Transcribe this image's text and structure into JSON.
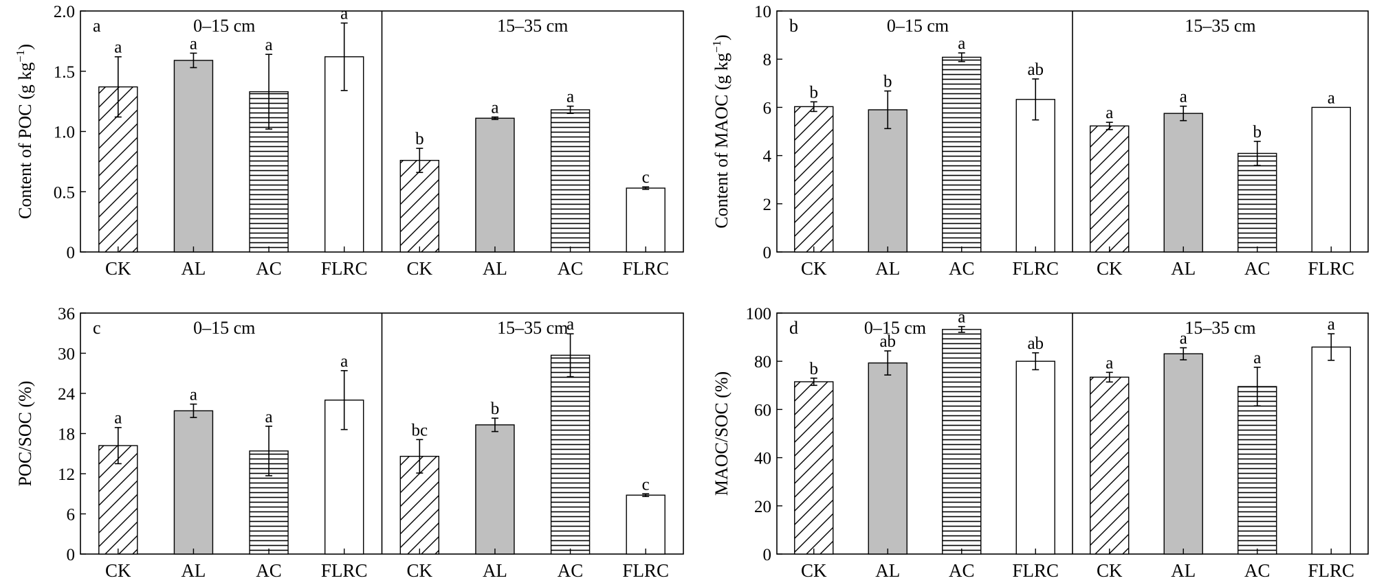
{
  "groups": [
    "0–15 cm",
    "15–35 cm"
  ],
  "categories": [
    "CK",
    "AL",
    "AC",
    "FLRC"
  ],
  "treatment_fills": {
    "CK": "diagonal-hatch",
    "AL": "#bfbfbf",
    "AC": "horizontal-hatch",
    "FLRC": "#ffffff"
  },
  "chart_data": [
    {
      "type": "bar",
      "panel_label": "a",
      "ylabel": "Content of POC (g kg",
      "ylabel_sup": "−1",
      "ylabel_end": ")",
      "ylim": [
        0,
        2.0
      ],
      "yticks": [
        0,
        0.5,
        1.0,
        1.5,
        2.0
      ],
      "ytick_labels": [
        "0",
        "0.5",
        "1.0",
        "1.5",
        "2.0"
      ],
      "series": [
        {
          "group": "0–15 cm",
          "values": [
            1.37,
            1.59,
            1.33,
            1.62
          ],
          "errors": [
            0.25,
            0.06,
            0.31,
            0.28
          ],
          "letters": [
            "a",
            "a",
            "a",
            "a"
          ]
        },
        {
          "group": "15–35 cm",
          "values": [
            0.76,
            1.11,
            1.18,
            0.53
          ],
          "errors": [
            0.1,
            0.01,
            0.03,
            0.01
          ],
          "letters": [
            "b",
            "a",
            "a",
            "c"
          ]
        }
      ]
    },
    {
      "type": "bar",
      "panel_label": "b",
      "ylabel": "Content of MAOC (g kg",
      "ylabel_sup": "−1",
      "ylabel_end": ")",
      "ylim": [
        0,
        10
      ],
      "yticks": [
        0,
        2,
        4,
        6,
        8,
        10
      ],
      "ytick_labels": [
        "0",
        "2",
        "4",
        "6",
        "8",
        "10"
      ],
      "series": [
        {
          "group": "0–15 cm",
          "values": [
            6.03,
            5.9,
            8.08,
            6.33
          ],
          "errors": [
            0.2,
            0.78,
            0.18,
            0.85
          ],
          "letters": [
            "b",
            "b",
            "a",
            "ab"
          ]
        },
        {
          "group": "15–35 cm",
          "values": [
            5.23,
            5.75,
            4.09,
            6.0
          ],
          "errors": [
            0.15,
            0.3,
            0.5,
            0.0
          ],
          "letters": [
            "a",
            "a",
            "b",
            "a"
          ]
        }
      ]
    },
    {
      "type": "bar",
      "panel_label": "c",
      "ylabel": "POC/SOC (%)",
      "ylabel_sup": "",
      "ylabel_end": "",
      "ylim": [
        0,
        36
      ],
      "yticks": [
        0,
        6,
        12,
        18,
        24,
        30,
        36
      ],
      "ytick_labels": [
        "0",
        "6",
        "12",
        "18",
        "24",
        "30",
        "36"
      ],
      "series": [
        {
          "group": "0–15 cm",
          "values": [
            16.2,
            21.4,
            15.4,
            23.0
          ],
          "errors": [
            2.7,
            1.0,
            3.7,
            4.4
          ],
          "letters": [
            "a",
            "a",
            "a",
            "a"
          ]
        },
        {
          "group": "15–35 cm",
          "values": [
            14.6,
            19.3,
            29.7,
            8.8
          ],
          "errors": [
            2.5,
            1.0,
            3.2,
            0.2
          ],
          "letters": [
            "bc",
            "b",
            "a",
            "c"
          ]
        }
      ]
    },
    {
      "type": "bar",
      "panel_label": "d",
      "ylabel": "MAOC/SOC (%)",
      "ylabel_sup": "",
      "ylabel_end": "",
      "ylim": [
        0,
        100
      ],
      "yticks": [
        0,
        20,
        40,
        60,
        80,
        100
      ],
      "ytick_labels": [
        "0",
        "20",
        "40",
        "60",
        "80",
        "100"
      ],
      "series": [
        {
          "group": "0–15 cm",
          "values": [
            71.5,
            79.3,
            93.2,
            80.0
          ],
          "errors": [
            1.5,
            5.0,
            1.2,
            3.5
          ],
          "letters": [
            "b",
            "ab",
            "a",
            "ab"
          ]
        },
        {
          "group": "15–35 cm",
          "values": [
            73.4,
            83.1,
            69.5,
            85.9
          ],
          "errors": [
            2.0,
            2.5,
            8.0,
            5.5
          ],
          "letters": [
            "a",
            "a",
            "a",
            "a"
          ]
        }
      ]
    }
  ]
}
